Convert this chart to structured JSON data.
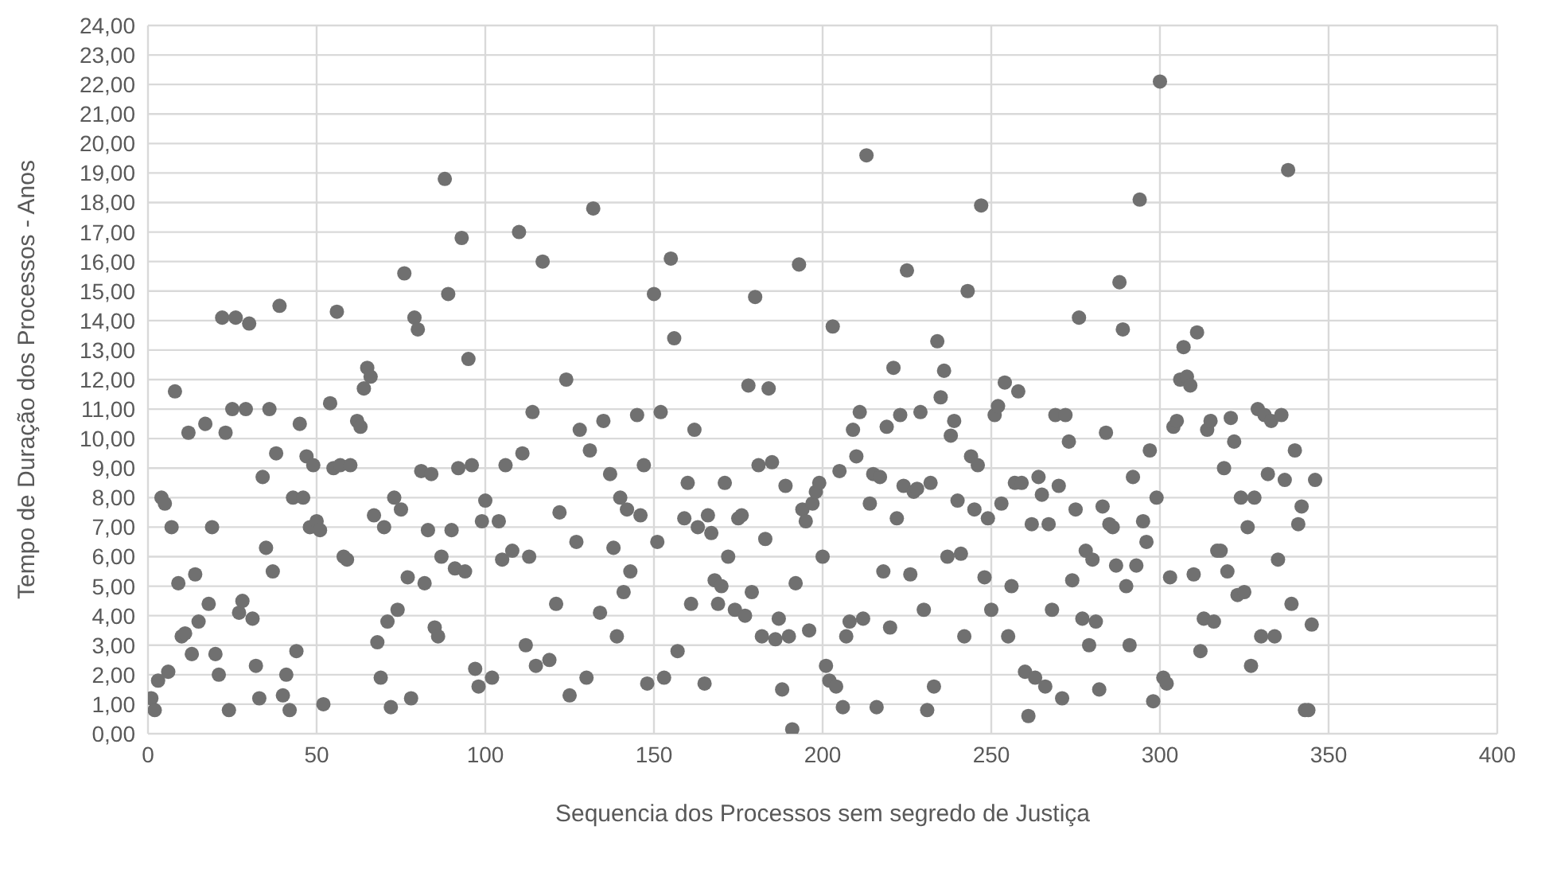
{
  "chart_data": {
    "type": "scatter",
    "xlabel": "Sequencia dos Processos sem segredo de Justiça",
    "ylabel": "Tempo de Duração dos Processos - Anos",
    "x": [
      1,
      2,
      3,
      4,
      5,
      6,
      7,
      8,
      9,
      10,
      11,
      12,
      13,
      14,
      15,
      17,
      18,
      19,
      20,
      21,
      22,
      23,
      24,
      25,
      26,
      27,
      28,
      29,
      30,
      31,
      32,
      33,
      34,
      35,
      36,
      37,
      38,
      39,
      40,
      41,
      42,
      43,
      44,
      45,
      46,
      47,
      48,
      49,
      50,
      51,
      52,
      54,
      55,
      56,
      57,
      58,
      59,
      60,
      62,
      63,
      64,
      65,
      66,
      67,
      68,
      69,
      70,
      71,
      72,
      73,
      74,
      75,
      76,
      77,
      78,
      79,
      80,
      81,
      82,
      83,
      84,
      85,
      86,
      87,
      88,
      89,
      90,
      91,
      92,
      93,
      94,
      95,
      96,
      97,
      98,
      99,
      100,
      102,
      104,
      105,
      106,
      108,
      110,
      111,
      112,
      113,
      114,
      115,
      117,
      119,
      121,
      122,
      124,
      125,
      127,
      128,
      130,
      131,
      132,
      134,
      135,
      137,
      138,
      139,
      140,
      141,
      142,
      143,
      145,
      146,
      147,
      148,
      150,
      151,
      152,
      153,
      155,
      156,
      157,
      159,
      160,
      161,
      162,
      163,
      165,
      166,
      167,
      168,
      169,
      170,
      171,
      172,
      174,
      175,
      176,
      177,
      178,
      179,
      180,
      181,
      182,
      183,
      184,
      185,
      186,
      187,
      188,
      189,
      190,
      191,
      192,
      193,
      194,
      195,
      196,
      197,
      198,
      199,
      200,
      201,
      202,
      203,
      204,
      205,
      206,
      207,
      208,
      209,
      210,
      211,
      212,
      213,
      214,
      215,
      216,
      217,
      218,
      219,
      220,
      221,
      222,
      223,
      224,
      225,
      226,
      227,
      228,
      229,
      230,
      231,
      232,
      233,
      234,
      235,
      236,
      237,
      238,
      239,
      240,
      241,
      242,
      243,
      244,
      245,
      246,
      247,
      248,
      249,
      250,
      251,
      252,
      253,
      254,
      255,
      256,
      257,
      258,
      259,
      260,
      261,
      262,
      263,
      264,
      265,
      266,
      267,
      268,
      269,
      270,
      271,
      272,
      273,
      274,
      275,
      276,
      277,
      278,
      279,
      280,
      281,
      282,
      283,
      284,
      285,
      286,
      287,
      288,
      289,
      290,
      291,
      292,
      293,
      294,
      295,
      296,
      297,
      298,
      299,
      300,
      301,
      302,
      303,
      304,
      305,
      306,
      307,
      308,
      309,
      310,
      311,
      312,
      313,
      314,
      315,
      316,
      317,
      318,
      319,
      320,
      321,
      322,
      323,
      324,
      325,
      326,
      327,
      328,
      329,
      330,
      331,
      332,
      333,
      334,
      335,
      336,
      337,
      338,
      339,
      340,
      341,
      342,
      343,
      344,
      345,
      346
    ],
    "series": [
      {
        "color": "#707070",
        "values": [
          1.2,
          0.8,
          1.8,
          8.0,
          7.8,
          2.1,
          7.0,
          11.6,
          5.1,
          3.3,
          3.4,
          10.2,
          2.7,
          5.4,
          3.8,
          10.5,
          4.4,
          7.0,
          2.7,
          2.0,
          14.1,
          10.2,
          0.8,
          11.0,
          14.1,
          4.1,
          4.5,
          11.0,
          13.9,
          3.9,
          2.3,
          1.2,
          8.7,
          6.3,
          11.0,
          5.5,
          9.5,
          14.5,
          1.3,
          2.0,
          0.8,
          8.0,
          2.8,
          10.5,
          8.0,
          9.4,
          7.0,
          9.1,
          7.2,
          6.9,
          1.0,
          11.2,
          9.0,
          14.3,
          9.1,
          6.0,
          5.9,
          9.1,
          10.6,
          10.4,
          11.7,
          12.4,
          12.1,
          7.4,
          3.1,
          1.9,
          7.0,
          3.8,
          0.9,
          8.0,
          4.2,
          7.6,
          15.6,
          5.3,
          1.2,
          14.1,
          13.7,
          8.9,
          5.1,
          6.9,
          8.8,
          3.6,
          3.3,
          6.0,
          18.8,
          14.9,
          6.9,
          5.6,
          9.0,
          16.8,
          5.5,
          12.7,
          9.1,
          2.2,
          1.6,
          7.2,
          7.9,
          1.9,
          7.2,
          5.9,
          9.1,
          6.2,
          17.0,
          9.5,
          3.0,
          6.0,
          10.9,
          2.3,
          16.0,
          2.5,
          4.4,
          7.5,
          12.0,
          1.3,
          6.5,
          10.3,
          1.9,
          9.6,
          17.8,
          4.1,
          10.6,
          8.8,
          6.3,
          3.3,
          8.0,
          4.8,
          7.6,
          5.5,
          10.8,
          7.4,
          9.1,
          1.7,
          14.9,
          6.5,
          10.9,
          1.9,
          16.1,
          13.4,
          2.8,
          7.3,
          8.5,
          4.4,
          10.3,
          7.0,
          1.7,
          7.4,
          6.8,
          5.2,
          4.4,
          5.0,
          8.5,
          6.0,
          4.2,
          7.3,
          7.4,
          4.0,
          11.8,
          4.8,
          14.8,
          9.1,
          3.3,
          6.6,
          11.7,
          9.2,
          3.2,
          3.9,
          1.5,
          8.4,
          3.3,
          0.15,
          5.1,
          15.9,
          7.6,
          7.2,
          3.5,
          7.8,
          8.2,
          8.5,
          6.0,
          2.3,
          1.8,
          13.8,
          1.6,
          8.9,
          0.9,
          3.3,
          3.8,
          10.3,
          9.4,
          10.9,
          3.9,
          19.6,
          7.8,
          8.8,
          0.9,
          8.7,
          5.5,
          10.4,
          3.6,
          12.4,
          7.3,
          10.8,
          8.4,
          15.7,
          5.4,
          8.2,
          8.3,
          10.9,
          4.2,
          0.8,
          8.5,
          1.6,
          13.3,
          11.4,
          12.3,
          6.0,
          10.1,
          10.6,
          7.9,
          6.1,
          3.3,
          15.0,
          9.4,
          7.6,
          9.1,
          17.9,
          5.3,
          7.3,
          4.2,
          10.8,
          11.1,
          7.8,
          11.9,
          3.3,
          5.0,
          8.5,
          11.6,
          8.5,
          2.1,
          0.6,
          7.1,
          1.9,
          8.7,
          8.1,
          1.6,
          7.1,
          4.2,
          10.8,
          8.4,
          1.2,
          10.8,
          9.9,
          5.2,
          7.6,
          14.1,
          3.9,
          6.2,
          3.0,
          5.9,
          3.8,
          1.5,
          7.7,
          10.2,
          7.1,
          7.0,
          5.7,
          15.3,
          13.7,
          5.0,
          3.0,
          8.7,
          5.7,
          18.1,
          7.2,
          6.5,
          9.6,
          1.1,
          8.0,
          22.1,
          1.9,
          1.7,
          5.3,
          10.4,
          10.6,
          12.0,
          13.1,
          12.1,
          11.8,
          5.4,
          13.6,
          2.8,
          3.9,
          10.3,
          10.6,
          3.8,
          6.2,
          6.2,
          9.0,
          5.5,
          10.7,
          9.9,
          4.7,
          8.0,
          4.8,
          7.0,
          2.3,
          8.0,
          11.0,
          3.3,
          10.8,
          8.8,
          10.6,
          3.3,
          5.9,
          10.8,
          8.6,
          19.1,
          4.4,
          9.6,
          7.1,
          7.7,
          0.8,
          0.8,
          3.7,
          8.6
        ]
      }
    ],
    "xlim": [
      0,
      400
    ],
    "xticks": [
      0,
      50,
      100,
      150,
      200,
      250,
      300,
      350,
      400
    ],
    "ylim": [
      0,
      24
    ],
    "yticks": [
      {
        "value": 0,
        "label": "0,00"
      },
      {
        "value": 1,
        "label": "1,00"
      },
      {
        "value": 2,
        "label": "2,00"
      },
      {
        "value": 3,
        "label": "3,00"
      },
      {
        "value": 4,
        "label": "4,00"
      },
      {
        "value": 5,
        "label": "5,00"
      },
      {
        "value": 6,
        "label": "6,00"
      },
      {
        "value": 7,
        "label": "7,00"
      },
      {
        "value": 8,
        "label": "8,00"
      },
      {
        "value": 9,
        "label": "9,00"
      },
      {
        "value": 10,
        "label": "10,00"
      },
      {
        "value": 11,
        "label": "11,00"
      },
      {
        "value": 12,
        "label": "12,00"
      },
      {
        "value": 13,
        "label": "13,00"
      },
      {
        "value": 14,
        "label": "14,00"
      },
      {
        "value": 15,
        "label": "15,00"
      },
      {
        "value": 16,
        "label": "16,00"
      },
      {
        "value": 17,
        "label": "17,00"
      },
      {
        "value": 18,
        "label": "18,00"
      },
      {
        "value": 19,
        "label": "19,00"
      },
      {
        "value": 20,
        "label": "20,00"
      },
      {
        "value": 21,
        "label": "21,00"
      },
      {
        "value": 22,
        "label": "22,00"
      },
      {
        "value": 23,
        "label": "23,00"
      },
      {
        "value": 24,
        "label": "24,00"
      }
    ],
    "grid": true,
    "marker": "circle",
    "legend": false
  }
}
